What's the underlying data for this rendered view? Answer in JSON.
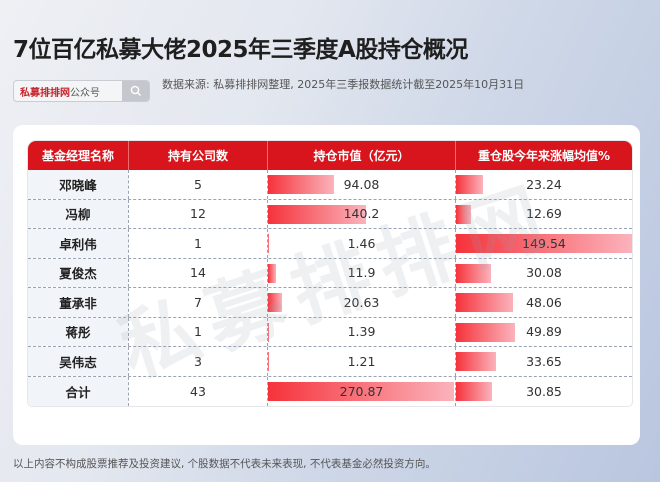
{
  "title": "7位百亿私募大佬2025年三季度A股持仓概况",
  "search": {
    "brand": "私募排排网",
    "suffix": "公众号",
    "icon": "search-icon"
  },
  "source": "数据来源: 私募排排网整理, 2025年三季报数据统计截至2025年10月31日",
  "watermark": "私募排排网",
  "table": {
    "headers": [
      "基金经理名称",
      "持有公司数",
      "持仓市值（亿元）",
      "重仓股今年来涨幅均值%"
    ],
    "rows": [
      {
        "name": "邓晓峰",
        "count": "5",
        "value": "94.08",
        "pct": "23.24",
        "value_w": 66,
        "pct_w": 27
      },
      {
        "name": "冯柳",
        "count": "12",
        "value": "140.2",
        "pct": "12.69",
        "value_w": 98,
        "pct_w": 15
      },
      {
        "name": "卓利伟",
        "count": "1",
        "value": "1.46",
        "pct": "149.54",
        "value_w": 1,
        "pct_w": 176
      },
      {
        "name": "夏俊杰",
        "count": "14",
        "value": "11.9",
        "pct": "30.08",
        "value_w": 8,
        "pct_w": 35
      },
      {
        "name": "董承非",
        "count": "7",
        "value": "20.63",
        "pct": "48.06",
        "value_w": 14,
        "pct_w": 57
      },
      {
        "name": "蒋彤",
        "count": "1",
        "value": "1.39",
        "pct": "49.89",
        "value_w": 1,
        "pct_w": 59
      },
      {
        "name": "吴伟志",
        "count": "3",
        "value": "1.21",
        "pct": "33.65",
        "value_w": 1,
        "pct_w": 40
      },
      {
        "name": "合计",
        "count": "43",
        "value": "270.87",
        "pct": "30.85",
        "value_w": 186,
        "pct_w": 36
      }
    ]
  },
  "footer": "以上内容不构成股票推荐及投资建议, 个股数据不代表未来表现, 不代表基金必然投资方向。",
  "colors": {
    "header_red": "#d8141c",
    "bar_start": "#f6323b",
    "bar_end": "#fbb3bc"
  },
  "chart_data": {
    "type": "table",
    "title": "7位百亿私募大佬2025年三季度A股持仓概况",
    "columns": [
      "基金经理名称",
      "持有公司数",
      "持仓市值（亿元）",
      "重仓股今年来涨幅均值%"
    ],
    "categories": [
      "邓晓峰",
      "冯柳",
      "卓利伟",
      "夏俊杰",
      "董承非",
      "蒋彤",
      "吴伟志",
      "合计"
    ],
    "series": [
      {
        "name": "持有公司数",
        "values": [
          5,
          12,
          1,
          14,
          7,
          1,
          3,
          43
        ]
      },
      {
        "name": "持仓市值（亿元）",
        "values": [
          94.08,
          140.2,
          1.46,
          11.9,
          20.63,
          1.39,
          1.21,
          270.87
        ]
      },
      {
        "name": "重仓股今年来涨幅均值%",
        "values": [
          23.24,
          12.69,
          149.54,
          30.08,
          48.06,
          49.89,
          33.65,
          30.85
        ]
      }
    ],
    "notes": "持仓市值 and 涨幅均值 columns include inline red gradient data bars"
  }
}
